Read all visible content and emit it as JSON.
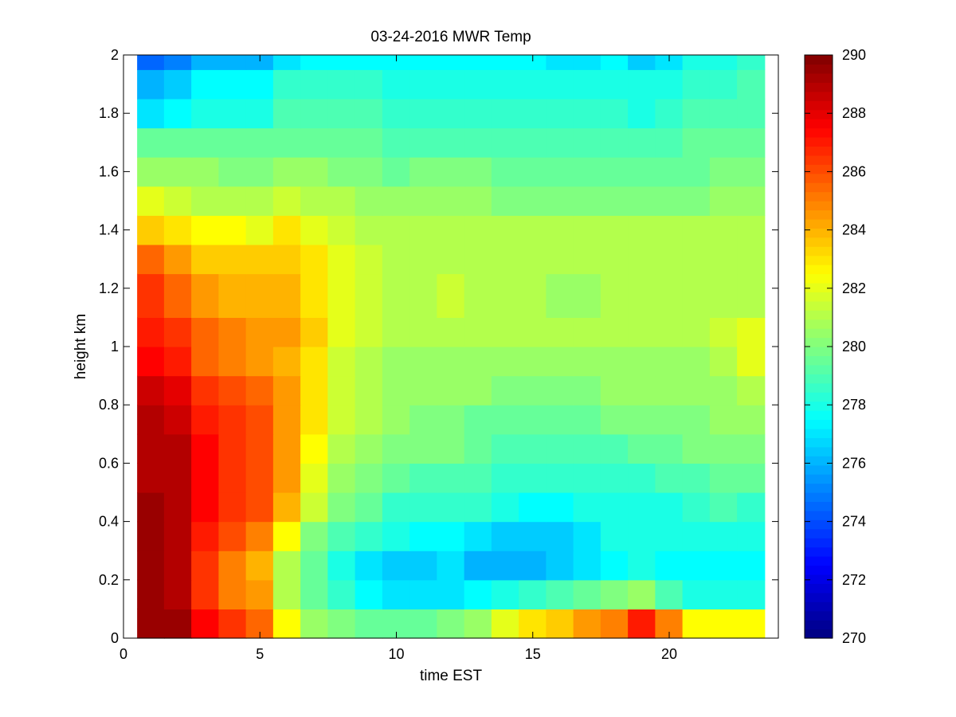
{
  "chart_data": {
    "type": "heatmap",
    "title": "03-24-2016 MWR Temp",
    "xlabel": "time EST",
    "ylabel": "height km",
    "xlim": [
      0,
      24
    ],
    "ylim": [
      0,
      2
    ],
    "x_ticks": [
      0,
      5,
      10,
      15,
      20
    ],
    "y_ticks": [
      0,
      0.2,
      0.4,
      0.6,
      0.8,
      1,
      1.2,
      1.4,
      1.6,
      1.8,
      2
    ],
    "x": [
      0.5,
      1.5,
      2.5,
      3.5,
      4.5,
      5.5,
      6.5,
      7.5,
      8.5,
      9.5,
      10.5,
      11.5,
      12.5,
      13.5,
      14.5,
      15.5,
      16.5,
      17.5,
      18.5,
      19.5,
      20.5,
      21.5,
      22.5,
      23.5
    ],
    "y": [
      0,
      0.1,
      0.2,
      0.3,
      0.4,
      0.5,
      0.6,
      0.7,
      0.8,
      0.9,
      1.0,
      1.1,
      1.25,
      1.35,
      1.45,
      1.55,
      1.65,
      1.75,
      1.85,
      1.95,
      2.0
    ],
    "z": [
      [
        289.5,
        289.5,
        287.5,
        286.5,
        285.5,
        282.5,
        280.5,
        280,
        279.5,
        279.5,
        279.5,
        280,
        280.5,
        282,
        283,
        283.5,
        284.5,
        285,
        287,
        285,
        282.5,
        282.5,
        282.5,
        280
      ],
      [
        289.5,
        289,
        286.5,
        285,
        284.5,
        281,
        279.5,
        278.5,
        277.5,
        277,
        277,
        277,
        277.5,
        278,
        278.5,
        279,
        279.5,
        280,
        280.5,
        279,
        278,
        278,
        278,
        278
      ],
      [
        289.5,
        289,
        286.5,
        285,
        284,
        281,
        279.5,
        278,
        277,
        276.5,
        276.5,
        277,
        276,
        276,
        276,
        276.5,
        277,
        277.5,
        278,
        277.5,
        277.5,
        277.5,
        277.5,
        277
      ],
      [
        289.5,
        289,
        287,
        286,
        285,
        282.5,
        280,
        279,
        278.5,
        278,
        277.5,
        277.5,
        277,
        276.5,
        276.5,
        276.5,
        277,
        278,
        278,
        278,
        278,
        278,
        278,
        278
      ],
      [
        289.5,
        289,
        287.5,
        286.5,
        286,
        284,
        281.5,
        280,
        279.5,
        278.5,
        278.5,
        278.5,
        278.5,
        278,
        277.5,
        277.5,
        278,
        278,
        278,
        278,
        278.5,
        279,
        278.5,
        278.5
      ],
      [
        289,
        289,
        287.5,
        286.5,
        286,
        284.5,
        282,
        280.5,
        280,
        279.5,
        279,
        279,
        279,
        278.5,
        278.5,
        278.5,
        278.5,
        278.5,
        278.5,
        279,
        279,
        279.5,
        279.5,
        279.5
      ],
      [
        289,
        289,
        287.5,
        286.5,
        286,
        284.5,
        282.5,
        281,
        280.5,
        280,
        280,
        280,
        279.5,
        279,
        279,
        279,
        279,
        279,
        279.5,
        279.5,
        280,
        280,
        280,
        280.5
      ],
      [
        289,
        288.5,
        287,
        286.5,
        286,
        284.5,
        283,
        281.5,
        281,
        280.5,
        280,
        280,
        279.5,
        279.5,
        279.5,
        279.5,
        279.5,
        280,
        280,
        280,
        280,
        280.5,
        280.5,
        281
      ],
      [
        288.5,
        288,
        286.5,
        286,
        285.5,
        284.5,
        283,
        281.5,
        281,
        280.5,
        280.5,
        280.5,
        280.5,
        280,
        280,
        280,
        280,
        280.5,
        280.5,
        280.5,
        280.5,
        280.5,
        281,
        282
      ],
      [
        287.5,
        287,
        285.5,
        285,
        284.5,
        284,
        283,
        281.5,
        281,
        280.5,
        280.5,
        280.5,
        280.5,
        280.5,
        280.5,
        280.5,
        280.5,
        280.5,
        280.5,
        280.5,
        280.5,
        281,
        282,
        282
      ],
      [
        287,
        286.5,
        285.5,
        285,
        284.5,
        284.5,
        283.5,
        282,
        281.5,
        281,
        281,
        281,
        281,
        281,
        281,
        281,
        281,
        281,
        281,
        281,
        281,
        281.5,
        282,
        283.5
      ],
      [
        286.5,
        285.5,
        284.5,
        284,
        284,
        284,
        283,
        282,
        281.5,
        281,
        281,
        281.5,
        281,
        281,
        281,
        280.5,
        280.5,
        281,
        281,
        281,
        281,
        281,
        281,
        283
      ],
      [
        285.5,
        284.5,
        283.5,
        283.5,
        283.5,
        283.5,
        283,
        282,
        281.5,
        281,
        281,
        281,
        281,
        281,
        281,
        281,
        281,
        281,
        281,
        281,
        281,
        281,
        281,
        282.5
      ],
      [
        283.5,
        283,
        282.5,
        282.5,
        282,
        283,
        282,
        281.5,
        281,
        281,
        281,
        281,
        281,
        281,
        281,
        281,
        281,
        281,
        281,
        281,
        281,
        281,
        281,
        282.5
      ],
      [
        282,
        281.5,
        281,
        281,
        281,
        281.5,
        281,
        281,
        280.5,
        280.5,
        280.5,
        280.5,
        280.5,
        280,
        280,
        280,
        280,
        280,
        280,
        280,
        280,
        280.5,
        280.5,
        282.5
      ],
      [
        280.5,
        280.5,
        280.5,
        280,
        280,
        280.5,
        280.5,
        280,
        280,
        279.5,
        280,
        280,
        280,
        279.5,
        279.5,
        279.5,
        279.5,
        279.5,
        279.5,
        279.5,
        279.5,
        280,
        280,
        280.5
      ],
      [
        279.5,
        279.5,
        279.5,
        279.5,
        279.5,
        279.5,
        279.5,
        279.5,
        279.5,
        279,
        279,
        279,
        279,
        279,
        279,
        279,
        279,
        279,
        279,
        279,
        279.5,
        279.5,
        279.5,
        280.5
      ],
      [
        277,
        277.5,
        278,
        278,
        278,
        279,
        279,
        279,
        279,
        278.5,
        278.5,
        278.5,
        278.5,
        278.5,
        278.5,
        278.5,
        278.5,
        278.5,
        278,
        278.5,
        279,
        279,
        279,
        280
      ],
      [
        276,
        276.5,
        277.5,
        277.5,
        277.5,
        278.5,
        278.5,
        278.5,
        278.5,
        278,
        278,
        278,
        278,
        278,
        278,
        278,
        278,
        278,
        278,
        278,
        278.5,
        278.5,
        279,
        279.5
      ],
      [
        274.5,
        275,
        276,
        276,
        276,
        277,
        277.5,
        277.5,
        277.5,
        277.5,
        277.5,
        277.5,
        277.5,
        277.5,
        277.5,
        277,
        277,
        277.5,
        276.5,
        277,
        278,
        278,
        278.5,
        279
      ],
      [
        273,
        274,
        275,
        275.5,
        276,
        276.5,
        277,
        277,
        277,
        276.5,
        277,
        277,
        277,
        276.5,
        277,
        277,
        276.5,
        277,
        276.5,
        277,
        277.5,
        277.5,
        277,
        278.5
      ]
    ],
    "colorbar": {
      "range": [
        270,
        290
      ],
      "ticks": [
        270,
        272,
        274,
        276,
        278,
        280,
        282,
        284,
        286,
        288,
        290
      ],
      "colormap": "jet"
    },
    "grid": false
  }
}
